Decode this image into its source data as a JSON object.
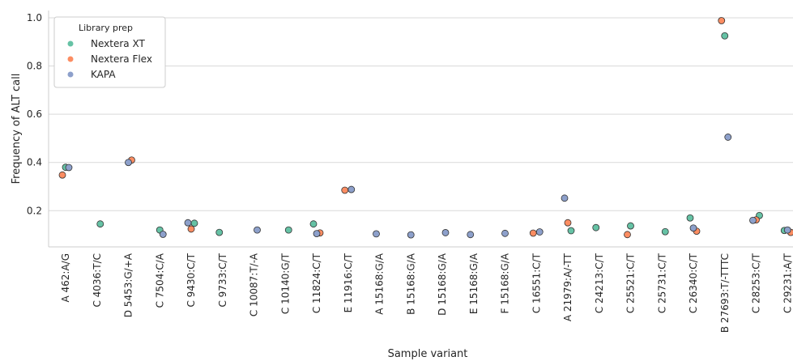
{
  "chart_data": {
    "type": "scatter",
    "xlabel": "Sample variant",
    "ylabel": "Frequency of ALT call",
    "ylim": [
      0.05,
      1.03
    ],
    "yticks": [
      0.2,
      0.4,
      0.6,
      0.8,
      1.0
    ],
    "ytick_labels": [
      "0.2",
      "0.4",
      "0.6",
      "0.8",
      "1.0"
    ],
    "grid": "horizontal",
    "legend": {
      "title": "Library prep",
      "position": "upper-left",
      "entries": [
        "Nextera XT",
        "Nextera Flex",
        "KAPA"
      ]
    },
    "categories": [
      "A 462:A/G",
      "C 4036:T/C",
      "D 5453:G/+A",
      "C 7504:C/A",
      "C 9430:C/T",
      "C 9733:C/T",
      "C 10087:T/-A",
      "C 10140:G/T",
      "C 11824:C/T",
      "E 11916:C/T",
      "A 15168:G/A",
      "B 15168:G/A",
      "D 15168:G/A",
      "E 15168:G/A",
      "F 15168:G/A",
      "C 16551:C/T",
      "A 21979:A/-TT",
      "C 24213:C/T",
      "C 25521:C/T",
      "C 25731:C/T",
      "C 26340:C/T",
      "B 27693:T/-TTTC",
      "C 28253:C/T",
      "C 29231:A/T"
    ],
    "series": [
      {
        "name": "Nextera XT",
        "color": "#66c2a5",
        "values": [
          0.38,
          0.145,
          null,
          0.12,
          0.148,
          0.11,
          null,
          0.12,
          0.145,
          null,
          null,
          null,
          null,
          null,
          null,
          null,
          0.117,
          0.13,
          0.137,
          0.113,
          0.17,
          0.925,
          0.18,
          0.118
        ]
      },
      {
        "name": "Nextera Flex",
        "color": "#fc8d62",
        "values": [
          0.348,
          null,
          0.41,
          null,
          0.124,
          null,
          null,
          null,
          0.108,
          0.285,
          null,
          null,
          null,
          null,
          null,
          0.107,
          0.15,
          null,
          0.101,
          null,
          0.115,
          0.988,
          0.162,
          0.11
        ]
      },
      {
        "name": "KAPA",
        "color": "#8da0cb",
        "values": [
          0.379,
          null,
          0.4,
          0.102,
          0.15,
          null,
          0.12,
          null,
          0.105,
          0.288,
          0.104,
          0.1,
          0.109,
          0.101,
          0.106,
          0.112,
          0.252,
          null,
          null,
          null,
          0.128,
          0.505,
          0.16,
          0.12
        ]
      }
    ]
  }
}
